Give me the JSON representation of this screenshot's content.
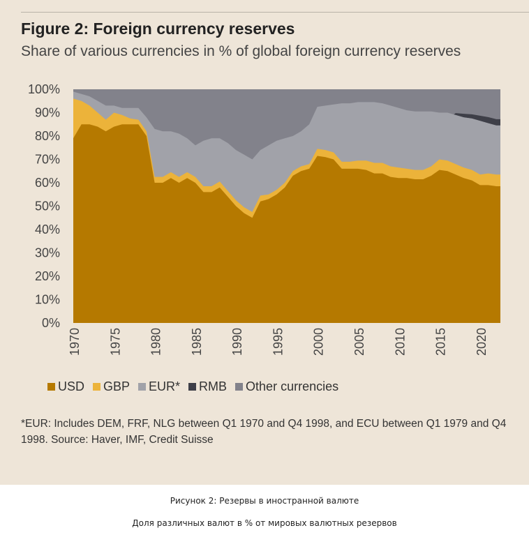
{
  "title": "Figure 2: Foreign currency reserves",
  "subtitle": "Share of various currencies in % of global foreign currency reserves",
  "footnote": "*EUR: Includes DEM, FRF, NLG between Q1 1970 and Q4 1998, and ECU between Q1 1979 and Q4 1998. Source: Haver, IMF, Credit Suisse",
  "caption_ru_1": "Рисунок 2: Резервы в иностранной валюте",
  "caption_ru_2": "Доля различных валют в % от мировых валютных резервов",
  "chart_data": {
    "type": "area",
    "stacked": true,
    "title": "Figure 2: Foreign currency reserves",
    "subtitle": "Share of various currencies in % of global foreign currency reserves",
    "xlim": [
      1970,
      2022.5
    ],
    "ylim": [
      0,
      100
    ],
    "y_ticks": [
      "0%",
      "10%",
      "20%",
      "30%",
      "40%",
      "50%",
      "60%",
      "70%",
      "80%",
      "90%",
      "100%"
    ],
    "x_ticks": [
      "1970",
      "1975",
      "1980",
      "1985",
      "1990",
      "1995",
      "2000",
      "2005",
      "2010",
      "2015",
      "2020"
    ],
    "legend_position": "bottom",
    "grid": false,
    "x": [
      1970,
      1971,
      1972,
      1973,
      1974,
      1975,
      1976,
      1977,
      1978,
      1979,
      1980,
      1981,
      1982,
      1983,
      1984,
      1985,
      1986,
      1987,
      1988,
      1989,
      1990,
      1991,
      1992,
      1993,
      1994,
      1995,
      1996,
      1997,
      1998,
      1999,
      2000,
      2001,
      2002,
      2003,
      2004,
      2005,
      2006,
      2007,
      2008,
      2009,
      2010,
      2011,
      2012,
      2013,
      2014,
      2015,
      2016,
      2017,
      2018,
      2019,
      2020,
      2021,
      2022
    ],
    "series": [
      {
        "name": "USD",
        "color": "#b57900",
        "values": [
          79,
          85,
          85,
          84,
          82,
          84,
          85,
          85,
          85,
          80,
          60,
          60,
          62,
          60,
          62,
          60,
          56,
          56,
          58,
          54,
          50,
          47,
          45,
          52,
          53,
          55,
          58,
          63,
          65,
          66,
          71.5,
          71,
          70,
          66,
          66,
          66,
          65.5,
          64,
          64,
          62.5,
          62,
          62,
          61.5,
          61.5,
          63,
          65.5,
          65,
          63.5,
          62,
          61,
          59,
          59,
          58.5
        ]
      },
      {
        "name": "GBP",
        "color": "#ecb33a",
        "values": [
          17,
          10,
          8,
          6,
          5,
          6,
          4,
          2.5,
          2,
          2,
          2.5,
          2.5,
          2.5,
          2.5,
          2.5,
          2.5,
          2.5,
          2.5,
          2.5,
          2.5,
          2.5,
          2.5,
          2.5,
          2.5,
          2,
          2,
          2,
          2,
          2,
          2,
          3,
          3,
          3,
          3,
          3,
          3.5,
          4,
          4.5,
          4.5,
          4.5,
          4.5,
          4,
          4,
          4,
          4,
          4.5,
          4.5,
          4.5,
          4.5,
          4.5,
          4.5,
          5,
          5
        ]
      },
      {
        "name": "EUR*",
        "color": "#a1a2a9",
        "values": [
          3,
          3,
          4,
          5,
          6,
          3,
          3,
          4.5,
          5,
          6,
          20.5,
          19.5,
          17.5,
          18.5,
          14.5,
          13.5,
          19.5,
          20.5,
          18.5,
          20.5,
          21.5,
          22.5,
          22.5,
          19.5,
          21,
          21,
          19,
          15,
          15,
          17,
          18,
          19,
          20.5,
          25,
          25,
          25,
          25,
          26,
          25.5,
          26,
          25.5,
          25,
          25,
          25,
          23.5,
          20,
          20.5,
          21,
          21.5,
          22,
          23,
          21.5,
          21
        ]
      },
      {
        "name": "RMB",
        "color": "#3e3f48",
        "values": [
          0,
          0,
          0,
          0,
          0,
          0,
          0,
          0,
          0,
          0,
          0,
          0,
          0,
          0,
          0,
          0,
          0,
          0,
          0,
          0,
          0,
          0,
          0,
          0,
          0,
          0,
          0,
          0,
          0,
          0,
          0,
          0,
          0,
          0,
          0,
          0,
          0,
          0,
          0,
          0,
          0,
          0,
          0,
          0,
          0,
          0,
          0,
          0.8,
          1.5,
          1.8,
          2.2,
          2.6,
          2.7
        ]
      },
      {
        "name": "Other currencies",
        "color": "#82828b",
        "values": "remainder to 100%"
      }
    ]
  }
}
